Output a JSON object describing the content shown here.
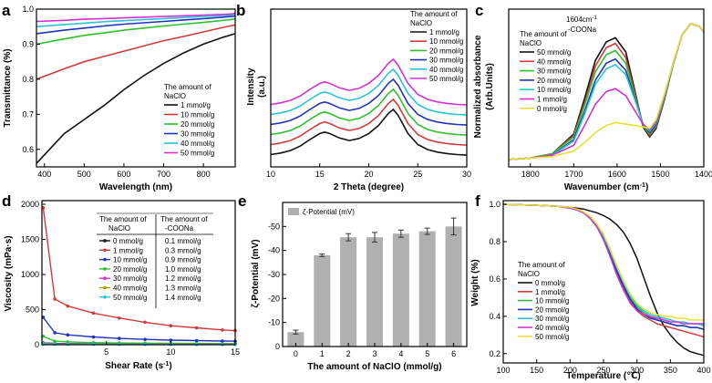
{
  "chart_data": [
    {
      "panel": "a",
      "type": "line",
      "xlabel": "Wavelength (nm)",
      "ylabel": "Transmittance (%)",
      "xlim": [
        380,
        880
      ],
      "ylim": [
        0.55,
        1.0
      ],
      "xticks": [
        400,
        500,
        600,
        700,
        800
      ],
      "yticks": [
        0.6,
        0.7,
        0.8,
        0.9,
        1.0
      ],
      "legend_title": [
        "The amount of",
        "NaClO"
      ],
      "x": [
        380,
        450,
        500,
        550,
        600,
        650,
        700,
        750,
        800,
        850,
        880
      ],
      "series": [
        {
          "name": "1 mmol/g",
          "color": "#111111",
          "values": [
            0.56,
            0.645,
            0.685,
            0.725,
            0.77,
            0.81,
            0.845,
            0.875,
            0.9,
            0.92,
            0.93
          ]
        },
        {
          "name": "10 mmol/g",
          "color": "#d43a3a",
          "values": [
            0.8,
            0.83,
            0.85,
            0.865,
            0.88,
            0.895,
            0.91,
            0.922,
            0.935,
            0.948,
            0.955
          ]
        },
        {
          "name": "20 mmol/g",
          "color": "#2fbf2f",
          "values": [
            0.9,
            0.915,
            0.925,
            0.932,
            0.94,
            0.946,
            0.952,
            0.957,
            0.962,
            0.968,
            0.972
          ]
        },
        {
          "name": "30 mmol/g",
          "color": "#2233bb",
          "values": [
            0.93,
            0.94,
            0.946,
            0.952,
            0.957,
            0.961,
            0.965,
            0.969,
            0.973,
            0.977,
            0.98
          ]
        },
        {
          "name": "40 mmol/g",
          "color": "#29c4d4",
          "values": [
            0.95,
            0.956,
            0.96,
            0.964,
            0.967,
            0.97,
            0.973,
            0.976,
            0.979,
            0.982,
            0.984
          ]
        },
        {
          "name": "50 mmol/g",
          "color": "#d52fd5",
          "values": [
            0.965,
            0.968,
            0.971,
            0.973,
            0.975,
            0.977,
            0.979,
            0.981,
            0.983,
            0.985,
            0.987
          ]
        }
      ]
    },
    {
      "panel": "b",
      "type": "line",
      "xlabel": "2 Theta (degree)",
      "ylabel": "Intensity",
      "ylabel2": "(a.u.)",
      "xlim": [
        10,
        30
      ],
      "xticks": [
        10,
        15,
        20,
        25,
        30
      ],
      "legend_title": [
        "The amount of",
        "NaClO"
      ],
      "x": [
        10,
        11,
        12,
        13,
        14,
        15,
        15.5,
        16,
        17,
        18,
        19,
        20,
        21,
        22,
        22.5,
        23,
        24,
        25,
        26,
        27,
        28,
        29,
        30
      ],
      "profile": [
        0.1,
        0.13,
        0.18,
        0.27,
        0.4,
        0.52,
        0.55,
        0.52,
        0.43,
        0.38,
        0.42,
        0.52,
        0.68,
        0.92,
        1.0,
        0.88,
        0.52,
        0.3,
        0.2,
        0.15,
        0.12,
        0.1,
        0.09
      ],
      "series": [
        {
          "name": "1 mmol/g",
          "color": "#111111",
          "offset": 0
        },
        {
          "name": "10 mmol/g",
          "color": "#d43a3a",
          "offset": 1
        },
        {
          "name": "20 mmol/g",
          "color": "#2fbf2f",
          "offset": 2
        },
        {
          "name": "30 mmol/g",
          "color": "#2233bb",
          "offset": 3
        },
        {
          "name": "40 mmol/g",
          "color": "#29c4d4",
          "offset": 4
        },
        {
          "name": "50 mmol/g",
          "color": "#d52fd5",
          "offset": 5
        }
      ]
    },
    {
      "panel": "c",
      "type": "line",
      "xlabel": "Wavenumber (cm",
      "xlabel_sup": "-1",
      "xlabel_end": ")",
      "ylabel": "Normalized absorbance",
      "ylabel2": "(Arb.Units)",
      "xlim": [
        1850,
        1400
      ],
      "xticks": [
        1800,
        1700,
        1600,
        1500,
        1400
      ],
      "annotation": [
        "1604cm",
        "-1",
        "-COONa"
      ],
      "legend_title": [
        "The amount of",
        "NaClO"
      ],
      "x": [
        1850,
        1800,
        1750,
        1700,
        1675,
        1650,
        1625,
        1604,
        1580,
        1560,
        1540,
        1525,
        1510,
        1490,
        1470,
        1450,
        1430,
        1410,
        1400
      ],
      "series": [
        {
          "name": "50 mmol/g",
          "color": "#111111",
          "values": [
            0.02,
            0.03,
            0.06,
            0.2,
            0.45,
            0.72,
            0.85,
            0.88,
            0.78,
            0.52,
            0.25,
            0.18,
            0.24,
            0.45,
            0.7,
            0.9,
            0.98,
            0.96,
            0.92
          ]
        },
        {
          "name": "40 mmol/g",
          "color": "#d43a3a",
          "values": [
            0.02,
            0.03,
            0.06,
            0.19,
            0.42,
            0.68,
            0.81,
            0.84,
            0.74,
            0.5,
            0.26,
            0.19,
            0.25,
            0.46,
            0.7,
            0.9,
            0.98,
            0.96,
            0.92
          ]
        },
        {
          "name": "30 mmol/g",
          "color": "#2fbf2f",
          "values": [
            0.02,
            0.03,
            0.06,
            0.18,
            0.4,
            0.64,
            0.76,
            0.79,
            0.7,
            0.48,
            0.26,
            0.2,
            0.26,
            0.46,
            0.7,
            0.9,
            0.98,
            0.96,
            0.92
          ]
        },
        {
          "name": "20 mmol/g",
          "color": "#2233bb",
          "values": [
            0.02,
            0.03,
            0.05,
            0.16,
            0.36,
            0.58,
            0.7,
            0.73,
            0.65,
            0.46,
            0.27,
            0.21,
            0.27,
            0.47,
            0.7,
            0.9,
            0.98,
            0.96,
            0.92
          ]
        },
        {
          "name": "10 mmol/g",
          "color": "#29c4d4",
          "values": [
            0.02,
            0.03,
            0.05,
            0.15,
            0.34,
            0.55,
            0.66,
            0.69,
            0.62,
            0.45,
            0.27,
            0.22,
            0.28,
            0.47,
            0.7,
            0.9,
            0.98,
            0.96,
            0.92
          ]
        },
        {
          "name": "1 mmol/g",
          "color": "#d52fd5",
          "values": [
            0.02,
            0.03,
            0.05,
            0.12,
            0.26,
            0.41,
            0.5,
            0.52,
            0.47,
            0.37,
            0.27,
            0.23,
            0.29,
            0.48,
            0.71,
            0.9,
            0.98,
            0.96,
            0.92
          ]
        },
        {
          "name": "0 mmol/g",
          "color": "#e8e030",
          "values": [
            0.02,
            0.03,
            0.04,
            0.08,
            0.14,
            0.21,
            0.26,
            0.28,
            0.27,
            0.26,
            0.25,
            0.24,
            0.3,
            0.49,
            0.71,
            0.9,
            0.98,
            0.96,
            0.92
          ]
        }
      ]
    },
    {
      "panel": "d",
      "type": "line",
      "xlabel": "Shear Rate (s",
      "xlabel_sup": "-1",
      "xlabel_end": ")",
      "ylabel": "Viscosity (mPa·s)",
      "xlim": [
        0,
        15
      ],
      "ylim": [
        0,
        2000
      ],
      "xticks": [
        5,
        10,
        15
      ],
      "yticks": [
        0,
        500,
        1000,
        1500,
        2000
      ],
      "table_header": [
        "The amount of",
        "NaClO",
        "The amount of",
        "-COONa"
      ],
      "x": [
        0.1,
        1,
        2,
        4,
        6,
        8,
        10,
        12,
        14,
        15
      ],
      "series": [
        {
          "name": "0 mmol/g",
          "coona": "0.1 mmol/g",
          "color": "#111111",
          "values": [
            25,
            18,
            15,
            13,
            12,
            11,
            11,
            10,
            10,
            10
          ]
        },
        {
          "name": "1 mmol/g",
          "coona": "0.3 mmol/g",
          "color": "#d43a3a",
          "values": [
            1950,
            650,
            550,
            450,
            380,
            320,
            270,
            240,
            210,
            200
          ]
        },
        {
          "name": "10 mmol/g",
          "coona": "0.9 mmol/g",
          "color": "#2233bb",
          "values": [
            390,
            170,
            140,
            110,
            90,
            75,
            65,
            58,
            52,
            50
          ]
        },
        {
          "name": "20 mmol/g",
          "coona": "1.0 mmol/g",
          "color": "#2fbf2f",
          "values": [
            120,
            50,
            40,
            30,
            25,
            22,
            20,
            18,
            16,
            15
          ]
        },
        {
          "name": "30 mmol/g",
          "coona": "1.2 mmol/g",
          "color": "#d52fd5",
          "values": [
            20,
            14,
            12,
            10,
            9,
            8,
            8,
            7,
            7,
            7
          ]
        },
        {
          "name": "40 mmol/g",
          "coona": "1.3 mmol/g",
          "color": "#a8a000",
          "values": [
            15,
            10,
            9,
            8,
            7,
            6,
            6,
            6,
            5,
            5
          ]
        },
        {
          "name": "50 mmol/g",
          "coona": "1.4 mmol/g",
          "color": "#29c4d4",
          "values": [
            10,
            8,
            7,
            6,
            5,
            5,
            4,
            4,
            4,
            4
          ]
        }
      ]
    },
    {
      "panel": "e",
      "type": "bar",
      "xlabel": "The amount of NaClO (mmol/g)",
      "ylabel": "ζ-Potential (mV)",
      "legend": "ζ-Potential (mV)",
      "categories": [
        "0",
        "1",
        "2",
        "3",
        "4",
        "5",
        "6"
      ],
      "values": [
        -6,
        -38,
        -45.5,
        -45.5,
        -47,
        -48,
        -50
      ],
      "errors": [
        0.8,
        0.5,
        1.5,
        2.0,
        1.5,
        1.3,
        3.5
      ],
      "ylim": [
        0,
        -60
      ],
      "yticks": [
        0,
        -10,
        -20,
        -30,
        -40,
        -50
      ],
      "color": "#b0b0b0"
    },
    {
      "panel": "f",
      "type": "line",
      "xlabel": "Temperature (℃)",
      "ylabel": "Weight (%)",
      "xlim": [
        100,
        400
      ],
      "ylim": [
        0.15,
        1.02
      ],
      "xticks": [
        100,
        150,
        200,
        250,
        300,
        350,
        400
      ],
      "yticks": [
        0.2,
        0.4,
        0.6,
        0.8,
        1.0
      ],
      "legend_title": [
        "The amount of",
        "NaClO"
      ],
      "x": [
        100,
        150,
        180,
        200,
        210,
        220,
        230,
        240,
        250,
        260,
        270,
        280,
        290,
        300,
        310,
        320,
        330,
        340,
        350,
        360,
        370,
        380,
        390,
        400
      ],
      "series": [
        {
          "name": "0 mmol/g",
          "color": "#111111",
          "values": [
            1.0,
            0.995,
            0.99,
            0.985,
            0.98,
            0.975,
            0.965,
            0.955,
            0.94,
            0.92,
            0.89,
            0.85,
            0.79,
            0.71,
            0.61,
            0.51,
            0.42,
            0.35,
            0.3,
            0.26,
            0.23,
            0.21,
            0.2,
            0.19
          ]
        },
        {
          "name": "1 mmol/g",
          "color": "#d43a3a",
          "values": [
            1.0,
            0.995,
            0.99,
            0.985,
            0.975,
            0.96,
            0.93,
            0.89,
            0.83,
            0.74,
            0.64,
            0.55,
            0.48,
            0.43,
            0.4,
            0.38,
            0.36,
            0.35,
            0.34,
            0.33,
            0.32,
            0.31,
            0.3,
            0.29
          ]
        },
        {
          "name": "10 mmol/g",
          "color": "#2fbf2f",
          "values": [
            1.0,
            0.995,
            0.99,
            0.98,
            0.97,
            0.955,
            0.925,
            0.88,
            0.82,
            0.74,
            0.65,
            0.57,
            0.5,
            0.45,
            0.42,
            0.4,
            0.38,
            0.37,
            0.36,
            0.35,
            0.35,
            0.34,
            0.34,
            0.33
          ]
        },
        {
          "name": "20 mmol/g",
          "color": "#2233bb",
          "values": [
            1.0,
            0.995,
            0.99,
            0.98,
            0.97,
            0.955,
            0.925,
            0.88,
            0.82,
            0.73,
            0.64,
            0.56,
            0.49,
            0.44,
            0.41,
            0.39,
            0.38,
            0.37,
            0.36,
            0.35,
            0.35,
            0.34,
            0.34,
            0.33
          ]
        },
        {
          "name": "30 mmol/g",
          "color": "#29c4d4",
          "values": [
            1.0,
            0.995,
            0.99,
            0.98,
            0.97,
            0.955,
            0.925,
            0.885,
            0.83,
            0.75,
            0.66,
            0.58,
            0.51,
            0.46,
            0.43,
            0.41,
            0.4,
            0.39,
            0.38,
            0.37,
            0.37,
            0.36,
            0.36,
            0.35
          ]
        },
        {
          "name": "40 mmol/g",
          "color": "#d52fd5",
          "values": [
            1.0,
            0.995,
            0.99,
            0.98,
            0.97,
            0.955,
            0.925,
            0.88,
            0.81,
            0.72,
            0.62,
            0.54,
            0.47,
            0.43,
            0.41,
            0.4,
            0.39,
            0.38,
            0.37,
            0.37,
            0.36,
            0.36,
            0.36,
            0.36
          ]
        },
        {
          "name": "50 mmol/g",
          "color": "#e8e030",
          "values": [
            1.0,
            0.995,
            0.99,
            0.985,
            0.975,
            0.96,
            0.935,
            0.895,
            0.84,
            0.76,
            0.67,
            0.59,
            0.52,
            0.47,
            0.44,
            0.42,
            0.41,
            0.4,
            0.4,
            0.39,
            0.39,
            0.38,
            0.38,
            0.38
          ]
        }
      ]
    }
  ],
  "panel_labels": [
    "a",
    "b",
    "c",
    "d",
    "e",
    "f"
  ]
}
